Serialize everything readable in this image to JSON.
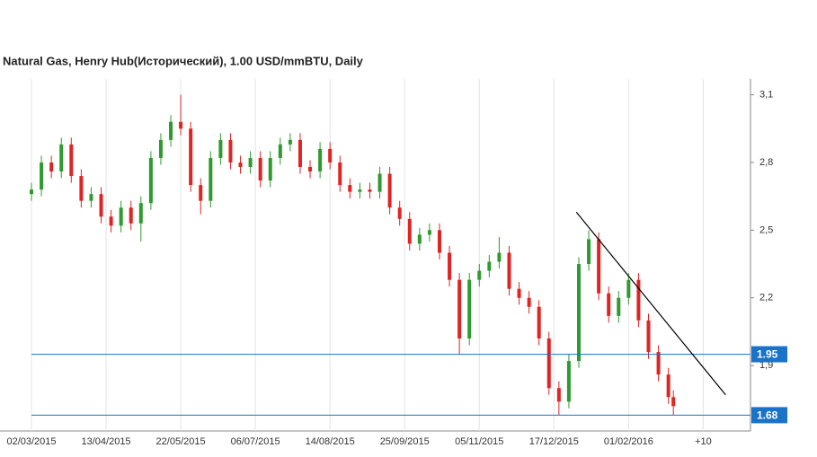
{
  "chart_data": {
    "type": "candlestick",
    "title": "Natural Gas, Henry Hub(Исторический), 1.00 USD/mmBTU, Daily",
    "x": [
      0,
      4,
      8,
      12,
      16,
      20,
      24,
      28,
      32,
      36,
      40,
      44,
      48,
      52,
      56,
      60,
      64,
      68,
      72,
      76,
      80,
      84,
      88,
      92,
      96,
      100,
      104,
      108,
      112,
      116,
      120,
      124,
      128,
      132,
      136,
      140,
      144,
      148,
      152,
      156,
      160,
      164,
      168,
      172,
      176,
      180,
      184,
      188,
      192,
      196,
      200,
      204,
      208,
      212,
      216,
      220,
      224,
      228,
      232,
      236,
      240,
      244,
      248,
      252,
      256,
      258
    ],
    "open": [
      2.66,
      2.68,
      2.8,
      2.76,
      2.88,
      2.74,
      2.63,
      2.66,
      2.56,
      2.52,
      2.6,
      2.53,
      2.62,
      2.82,
      2.9,
      2.98,
      2.95,
      2.7,
      2.63,
      2.82,
      2.9,
      2.8,
      2.78,
      2.82,
      2.72,
      2.82,
      2.88,
      2.9,
      2.78,
      2.76,
      2.86,
      2.8,
      2.7,
      2.67,
      2.68,
      2.67,
      2.75,
      2.6,
      2.55,
      2.44,
      2.48,
      2.5,
      2.4,
      2.28,
      2.02,
      2.28,
      2.32,
      2.36,
      2.4,
      2.24,
      2.2,
      2.16,
      2.02,
      1.8,
      1.74,
      1.92,
      2.35,
      2.46,
      2.22,
      2.12,
      2.2,
      2.28,
      2.1,
      1.96,
      1.86,
      1.76
    ],
    "high": [
      2.71,
      2.83,
      2.83,
      2.91,
      2.91,
      2.77,
      2.69,
      2.69,
      2.59,
      2.63,
      2.63,
      2.65,
      2.85,
      2.93,
      3.01,
      3.1,
      2.98,
      2.73,
      2.85,
      2.93,
      2.93,
      2.83,
      2.85,
      2.85,
      2.85,
      2.91,
      2.93,
      2.93,
      2.81,
      2.89,
      2.89,
      2.83,
      2.73,
      2.71,
      2.71,
      2.78,
      2.78,
      2.63,
      2.58,
      2.51,
      2.53,
      2.53,
      2.43,
      2.31,
      2.31,
      2.35,
      2.39,
      2.47,
      2.43,
      2.27,
      2.23,
      2.19,
      2.05,
      1.83,
      1.95,
      2.38,
      2.5,
      2.49,
      2.25,
      2.23,
      2.31,
      2.31,
      2.13,
      1.99,
      1.89,
      1.79
    ],
    "low": [
      2.63,
      2.65,
      2.73,
      2.73,
      2.71,
      2.6,
      2.6,
      2.53,
      2.49,
      2.49,
      2.5,
      2.45,
      2.59,
      2.79,
      2.87,
      2.92,
      2.67,
      2.57,
      2.6,
      2.79,
      2.77,
      2.75,
      2.75,
      2.69,
      2.69,
      2.79,
      2.85,
      2.75,
      2.73,
      2.73,
      2.77,
      2.67,
      2.64,
      2.64,
      2.64,
      2.64,
      2.57,
      2.52,
      2.41,
      2.41,
      2.45,
      2.37,
      2.25,
      1.95,
      1.99,
      2.25,
      2.29,
      2.33,
      2.21,
      2.17,
      2.13,
      1.99,
      1.77,
      1.68,
      1.71,
      1.89,
      2.32,
      2.19,
      2.09,
      2.09,
      2.17,
      2.07,
      1.93,
      1.83,
      1.73,
      1.68
    ],
    "close": [
      2.68,
      2.8,
      2.76,
      2.88,
      2.74,
      2.63,
      2.66,
      2.56,
      2.52,
      2.6,
      2.53,
      2.62,
      2.82,
      2.9,
      2.98,
      2.95,
      2.7,
      2.63,
      2.82,
      2.9,
      2.8,
      2.78,
      2.82,
      2.72,
      2.82,
      2.88,
      2.9,
      2.78,
      2.76,
      2.86,
      2.8,
      2.7,
      2.67,
      2.68,
      2.67,
      2.75,
      2.6,
      2.55,
      2.44,
      2.48,
      2.5,
      2.4,
      2.28,
      2.02,
      2.28,
      2.32,
      2.36,
      2.4,
      2.24,
      2.2,
      2.16,
      2.02,
      1.8,
      1.74,
      1.92,
      2.35,
      2.46,
      2.22,
      2.12,
      2.2,
      2.28,
      2.1,
      1.96,
      1.86,
      1.76,
      1.72
    ],
    "up_color": "#2f9a2f",
    "down_color": "#e02424",
    "xlim": [
      0,
      289
    ],
    "ylim": [
      1.61,
      3.17
    ],
    "xticks": [
      {
        "value": 0,
        "label": "02/03/2015"
      },
      {
        "value": 30,
        "label": "13/04/2015"
      },
      {
        "value": 60,
        "label": "22/05/2015"
      },
      {
        "value": 90,
        "label": "06/07/2015"
      },
      {
        "value": 120,
        "label": "14/08/2015"
      },
      {
        "value": 150,
        "label": "25/09/2015"
      },
      {
        "value": 180,
        "label": "05/11/2015"
      },
      {
        "value": 210,
        "label": "17/12/2015"
      },
      {
        "value": 240,
        "label": "01/02/2016"
      },
      {
        "value": 270,
        "label": "+10"
      }
    ],
    "yticks": [
      {
        "value": 1.9,
        "label": "1,9"
      },
      {
        "value": 2.2,
        "label": "2,2"
      },
      {
        "value": 2.5,
        "label": "2,5"
      },
      {
        "value": 2.8,
        "label": "2,8"
      },
      {
        "value": 3.1,
        "label": "3,1"
      }
    ],
    "grid": true,
    "hlines": [
      {
        "value": 1.95,
        "label": "1.95"
      },
      {
        "value": 1.68,
        "label": "1.68"
      }
    ],
    "hline_color": "#1a73c8",
    "trendline": {
      "x": [
        219,
        279
      ],
      "y": [
        2.58,
        1.77
      ],
      "color": "#000000"
    }
  }
}
